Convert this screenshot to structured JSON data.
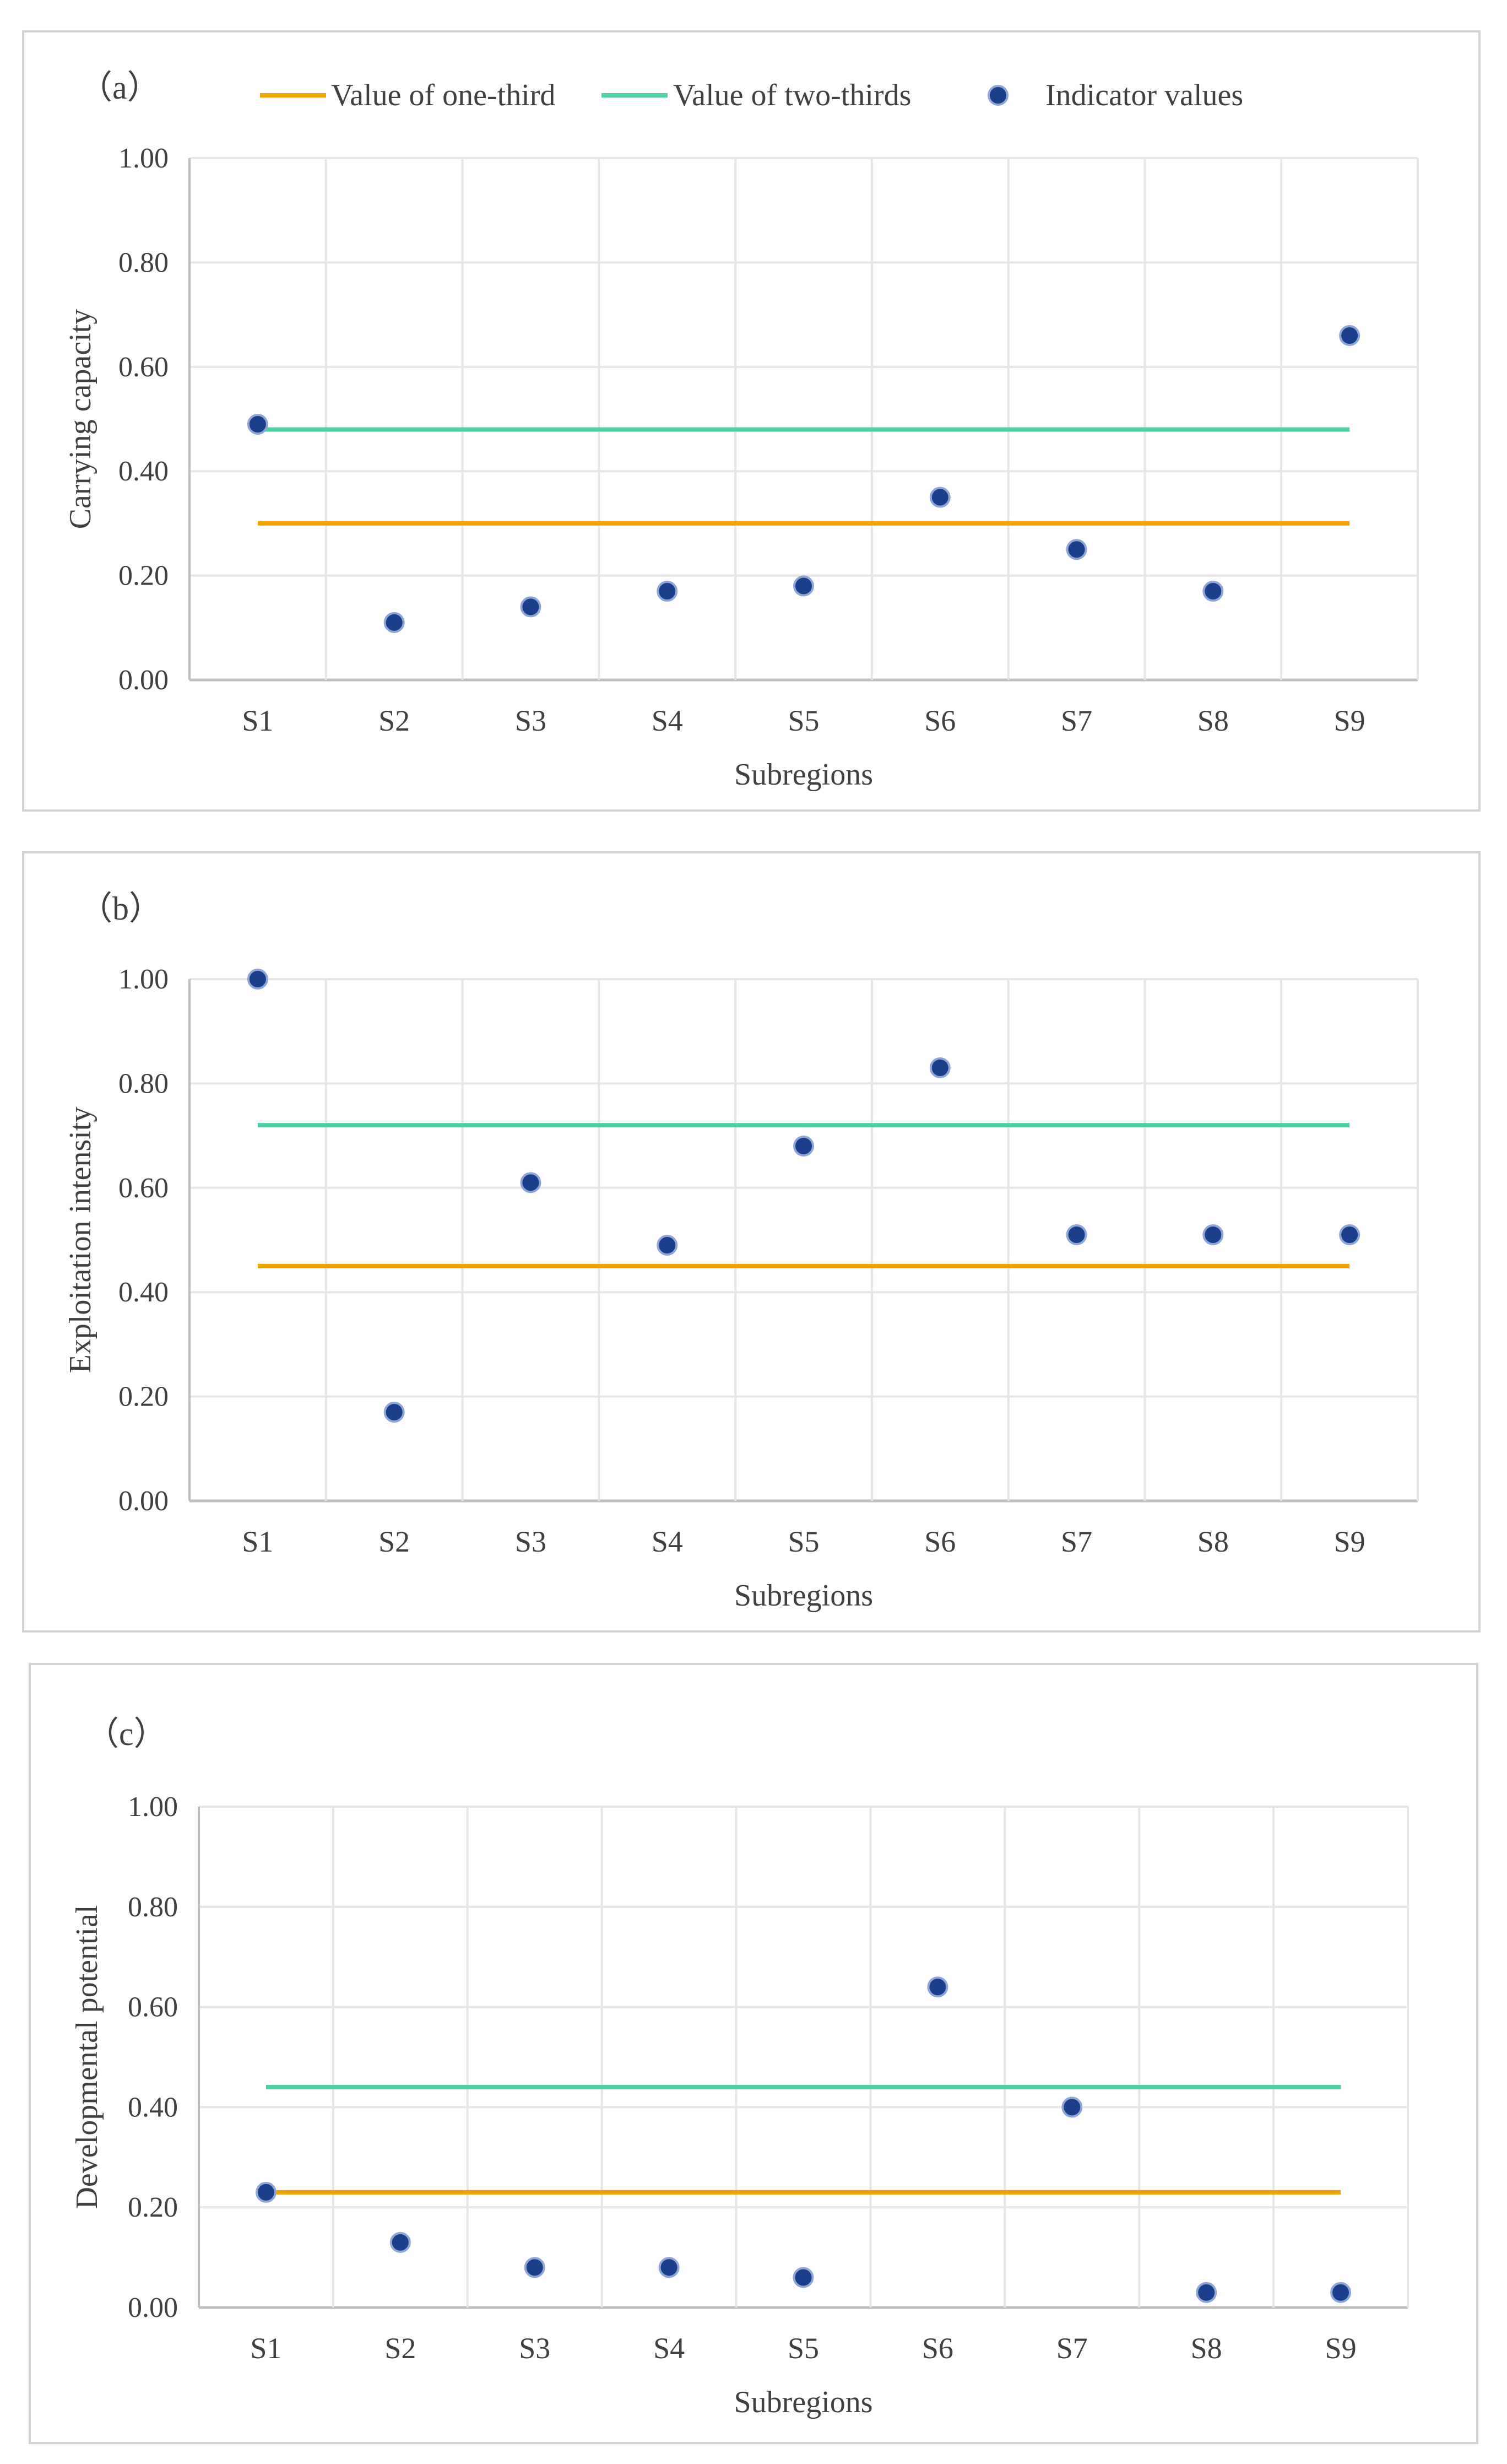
{
  "legend": {
    "one_third": "Value of one-third",
    "two_thirds": "Value of two-thirds",
    "indicator": "Indicator values"
  },
  "colors": {
    "one_third": "#f0a400",
    "two_thirds": "#4fd1a8",
    "points": "#1b3f8b",
    "grid": "#e6e6e6",
    "axis": "#bfbfbf",
    "text": "#404040"
  },
  "chart_data": [
    {
      "type": "scatter",
      "label": "（a）",
      "categories": [
        "S1",
        "S2",
        "S3",
        "S4",
        "S5",
        "S6",
        "S7",
        "S8",
        "S9"
      ],
      "values": [
        0.49,
        0.11,
        0.14,
        0.17,
        0.18,
        0.35,
        0.25,
        0.17,
        0.66
      ],
      "one_third": 0.3,
      "two_thirds": 0.48,
      "xlabel": "Subregions",
      "ylabel": "Carrying capacity",
      "ylim": [
        0,
        1
      ],
      "yticks": [
        "0.00",
        "0.20",
        "0.40",
        "0.60",
        "0.80",
        "1.00"
      ],
      "legend": "top"
    },
    {
      "type": "scatter",
      "label": "（b）",
      "categories": [
        "S1",
        "S2",
        "S3",
        "S4",
        "S5",
        "S6",
        "S7",
        "S8",
        "S9"
      ],
      "values": [
        1.0,
        0.17,
        0.61,
        0.49,
        0.68,
        0.83,
        0.51,
        0.51,
        0.51
      ],
      "one_third": 0.45,
      "two_thirds": 0.72,
      "xlabel": "Subregions",
      "ylabel": "Exploitation intensity",
      "ylim": [
        0,
        1
      ],
      "yticks": [
        "0.00",
        "0.20",
        "0.40",
        "0.60",
        "0.80",
        "1.00"
      ]
    },
    {
      "type": "scatter",
      "label": "（c）",
      "categories": [
        "S1",
        "S2",
        "S3",
        "S4",
        "S5",
        "S6",
        "S7",
        "S8",
        "S9"
      ],
      "values": [
        0.23,
        0.13,
        0.08,
        0.08,
        0.06,
        0.64,
        0.4,
        0.03,
        0.03
      ],
      "one_third": 0.23,
      "two_thirds": 0.44,
      "xlabel": "Subregions",
      "ylabel": "Developmental potential",
      "ylim": [
        0,
        1
      ],
      "yticks": [
        "0.00",
        "0.20",
        "0.40",
        "0.60",
        "0.80",
        "1.00"
      ]
    }
  ]
}
